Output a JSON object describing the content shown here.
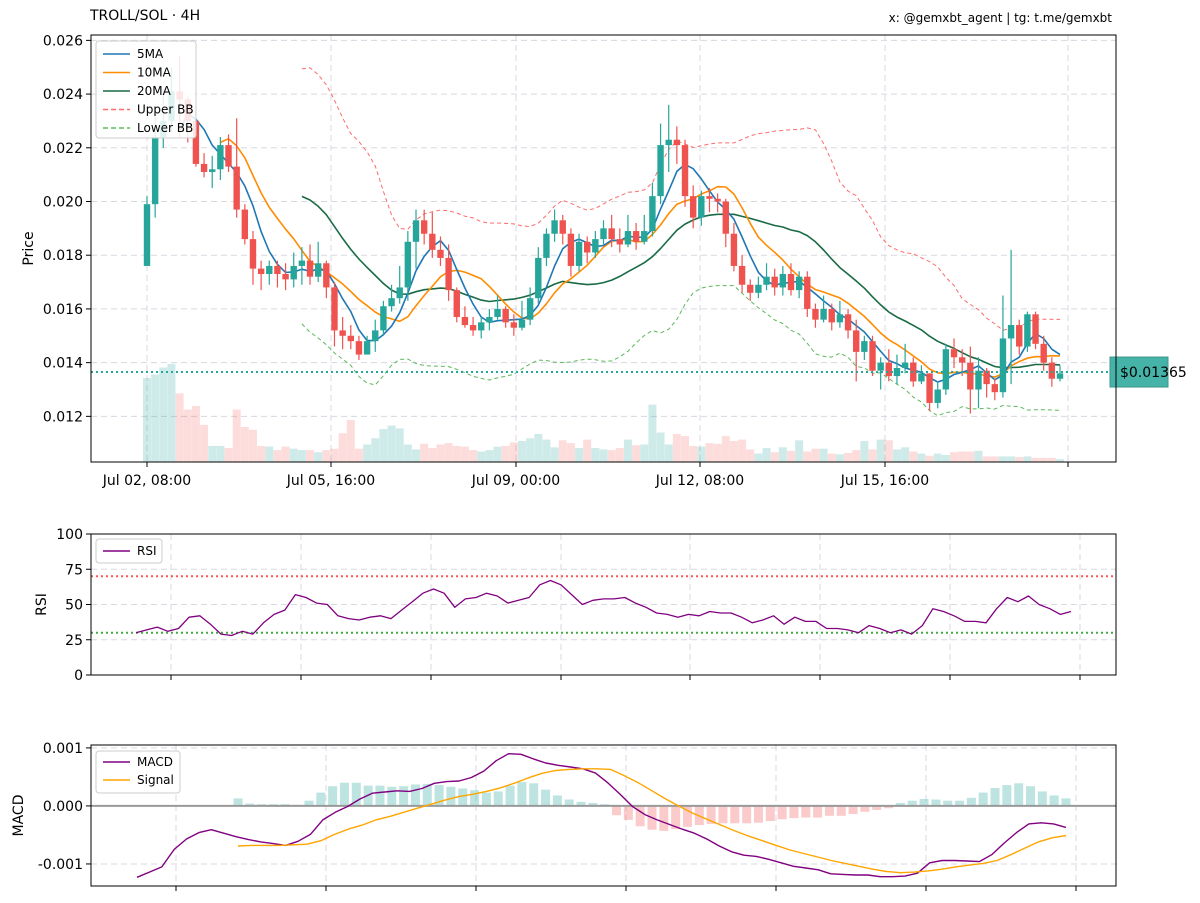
{
  "header": {
    "title": "TROLL/SOL · 4H",
    "credits": "x: @gemxbt_agent | tg: t.me/gemxbt"
  },
  "chart_data": [
    {
      "type": "candlestick",
      "ylabel": "Price",
      "ylim": [
        0.0103,
        0.0262
      ],
      "yticks": [
        "0.012",
        "0.014",
        "0.016",
        "0.018",
        "0.020",
        "0.022",
        "0.024",
        "0.026"
      ],
      "xticks": [
        "Jul 02, 08:00",
        "Jul 05, 16:00",
        "Jul 09, 00:00",
        "Jul 12, 08:00",
        "Jul 15, 16:00"
      ],
      "legend": {
        "position": "top-left",
        "entries": [
          "5MA",
          "10MA",
          "20MA",
          "Upper BB",
          "Lower BB"
        ]
      },
      "colors": {
        "up": "#26a69a",
        "down": "#ef5350",
        "ma5": "#1f77b4",
        "ma10": "#ff8c00",
        "ma20": "#1a6b45",
        "bb_upper": "#ff6b6b",
        "bb_lower": "#5cb85c"
      },
      "last_price": {
        "label": "$0.01365",
        "value": 0.01365,
        "color": "#26a69a"
      },
      "candles": [
        [
          0.0176,
          0.0199,
          0.0202,
          0.0176
        ],
        [
          0.0199,
          0.0224,
          0.0234,
          0.0194
        ],
        [
          0.0224,
          0.023,
          0.0242,
          0.022
        ],
        [
          0.023,
          0.0241,
          0.025,
          0.0226
        ],
        [
          0.0241,
          0.0238,
          0.0254,
          0.0224
        ],
        [
          0.0238,
          0.023,
          0.0239,
          0.0222
        ],
        [
          0.023,
          0.0214,
          0.0236,
          0.0213
        ],
        [
          0.0214,
          0.0211,
          0.0218,
          0.0209
        ],
        [
          0.0211,
          0.0212,
          0.0217,
          0.0205
        ],
        [
          0.0212,
          0.0221,
          0.0224,
          0.0208
        ],
        [
          0.0221,
          0.0213,
          0.0225,
          0.0211
        ],
        [
          0.0213,
          0.0197,
          0.0231,
          0.0194
        ],
        [
          0.0197,
          0.0186,
          0.0199,
          0.0184
        ],
        [
          0.0186,
          0.0175,
          0.0189,
          0.0169
        ],
        [
          0.0175,
          0.0173,
          0.0178,
          0.0167
        ],
        [
          0.0173,
          0.0176,
          0.0178,
          0.0169
        ],
        [
          0.0176,
          0.0173,
          0.0178,
          0.0168
        ],
        [
          0.0173,
          0.0171,
          0.0177,
          0.0167
        ],
        [
          0.0171,
          0.0176,
          0.0181,
          0.0168
        ],
        [
          0.0176,
          0.0178,
          0.0183,
          0.0169
        ],
        [
          0.0178,
          0.0172,
          0.0184,
          0.0169
        ],
        [
          0.0172,
          0.0177,
          0.0185,
          0.017
        ],
        [
          0.0177,
          0.0168,
          0.0178,
          0.0164
        ],
        [
          0.0168,
          0.0152,
          0.017,
          0.0146
        ],
        [
          0.0152,
          0.015,
          0.0157,
          0.0145
        ],
        [
          0.015,
          0.0148,
          0.0154,
          0.0145
        ],
        [
          0.0148,
          0.0143,
          0.015,
          0.0141
        ],
        [
          0.0143,
          0.0148,
          0.015,
          0.0145
        ],
        [
          0.0148,
          0.0152,
          0.0156,
          0.0144
        ],
        [
          0.0152,
          0.0161,
          0.0163,
          0.015
        ],
        [
          0.0161,
          0.0164,
          0.0169,
          0.0159
        ],
        [
          0.0164,
          0.0168,
          0.0176,
          0.0162
        ],
        [
          0.0168,
          0.0185,
          0.0189,
          0.0163
        ],
        [
          0.0185,
          0.0193,
          0.0197,
          0.0175
        ],
        [
          0.0193,
          0.0188,
          0.0197,
          0.0184
        ],
        [
          0.0188,
          0.0182,
          0.0196,
          0.0179
        ],
        [
          0.0182,
          0.0179,
          0.0187,
          0.0176
        ],
        [
          0.0179,
          0.0167,
          0.0184,
          0.0163
        ],
        [
          0.0167,
          0.0157,
          0.0168,
          0.0155
        ],
        [
          0.0157,
          0.0154,
          0.0161,
          0.0153
        ],
        [
          0.0154,
          0.0152,
          0.0157,
          0.015
        ],
        [
          0.0152,
          0.0155,
          0.0157,
          0.0149
        ],
        [
          0.0155,
          0.0157,
          0.016,
          0.0152
        ],
        [
          0.0157,
          0.016,
          0.0165,
          0.0156
        ],
        [
          0.016,
          0.0155,
          0.0161,
          0.0153
        ],
        [
          0.0155,
          0.0153,
          0.0158,
          0.015
        ],
        [
          0.0153,
          0.0156,
          0.0163,
          0.0152
        ],
        [
          0.0156,
          0.0164,
          0.0168,
          0.0154
        ],
        [
          0.0164,
          0.0179,
          0.0183,
          0.0162
        ],
        [
          0.0179,
          0.0188,
          0.019,
          0.0176
        ],
        [
          0.0188,
          0.0193,
          0.0197,
          0.0185
        ],
        [
          0.0193,
          0.0188,
          0.0195,
          0.0184
        ],
        [
          0.0188,
          0.0176,
          0.019,
          0.0172
        ],
        [
          0.0176,
          0.0185,
          0.0188,
          0.0174
        ],
        [
          0.0185,
          0.0181,
          0.0187,
          0.0177
        ],
        [
          0.0181,
          0.0186,
          0.0189,
          0.0179
        ],
        [
          0.0186,
          0.019,
          0.0193,
          0.0184
        ],
        [
          0.019,
          0.0186,
          0.0195,
          0.0183
        ],
        [
          0.0186,
          0.0184,
          0.019,
          0.0181
        ],
        [
          0.0184,
          0.0189,
          0.0195,
          0.0183
        ],
        [
          0.0189,
          0.0185,
          0.0192,
          0.0182
        ],
        [
          0.0185,
          0.0189,
          0.0195,
          0.0184
        ],
        [
          0.0189,
          0.0202,
          0.0207,
          0.0187
        ],
        [
          0.0202,
          0.0221,
          0.0229,
          0.0199
        ],
        [
          0.0221,
          0.0223,
          0.0236,
          0.0211
        ],
        [
          0.0223,
          0.0221,
          0.0228,
          0.0214
        ],
        [
          0.0221,
          0.0202,
          0.0223,
          0.0198
        ],
        [
          0.0202,
          0.0194,
          0.0206,
          0.019
        ],
        [
          0.0194,
          0.0202,
          0.0204,
          0.0191
        ],
        [
          0.0202,
          0.0201,
          0.0205,
          0.0196
        ],
        [
          0.0201,
          0.02,
          0.0203,
          0.0196
        ],
        [
          0.02,
          0.0188,
          0.0201,
          0.0183
        ],
        [
          0.0188,
          0.0176,
          0.0192,
          0.0174
        ],
        [
          0.0176,
          0.0169,
          0.018,
          0.0166
        ],
        [
          0.0169,
          0.0166,
          0.0171,
          0.0163
        ],
        [
          0.0166,
          0.0169,
          0.0172,
          0.0164
        ],
        [
          0.0169,
          0.0172,
          0.0177,
          0.0167
        ],
        [
          0.0172,
          0.0168,
          0.0175,
          0.0165
        ],
        [
          0.0168,
          0.0173,
          0.0176,
          0.0165
        ],
        [
          0.0173,
          0.0167,
          0.0177,
          0.0165
        ],
        [
          0.0167,
          0.0172,
          0.0174,
          0.0164
        ],
        [
          0.0172,
          0.016,
          0.0174,
          0.0157
        ],
        [
          0.016,
          0.0156,
          0.0162,
          0.0153
        ],
        [
          0.0156,
          0.016,
          0.0165,
          0.0155
        ],
        [
          0.016,
          0.0155,
          0.0162,
          0.0152
        ],
        [
          0.0155,
          0.0158,
          0.0163,
          0.0153
        ],
        [
          0.0158,
          0.0152,
          0.016,
          0.0149
        ],
        [
          0.0152,
          0.0144,
          0.0156,
          0.0133
        ],
        [
          0.0144,
          0.0148,
          0.015,
          0.0141
        ],
        [
          0.0148,
          0.0137,
          0.015,
          0.0135
        ],
        [
          0.0137,
          0.014,
          0.0142,
          0.013
        ],
        [
          0.014,
          0.0135,
          0.0145,
          0.0133
        ],
        [
          0.0135,
          0.0138,
          0.0143,
          0.0132
        ],
        [
          0.0138,
          0.014,
          0.0147,
          0.0136
        ],
        [
          0.014,
          0.0133,
          0.0142,
          0.0131
        ],
        [
          0.0133,
          0.0136,
          0.0139,
          0.0132
        ],
        [
          0.0136,
          0.0125,
          0.0136,
          0.0122
        ],
        [
          0.0125,
          0.013,
          0.0133,
          0.0123
        ],
        [
          0.013,
          0.0145,
          0.0147,
          0.0128
        ],
        [
          0.0145,
          0.0142,
          0.0149,
          0.0138
        ],
        [
          0.0142,
          0.014,
          0.0145,
          0.0135
        ],
        [
          0.014,
          0.013,
          0.0146,
          0.0121
        ],
        [
          0.013,
          0.0137,
          0.0142,
          0.0123
        ],
        [
          0.0137,
          0.0132,
          0.0138,
          0.0127
        ],
        [
          0.0132,
          0.0129,
          0.0134,
          0.0126
        ],
        [
          0.0129,
          0.0149,
          0.0165,
          0.0127
        ],
        [
          0.0149,
          0.0154,
          0.0182,
          0.0132
        ],
        [
          0.0154,
          0.0146,
          0.0156,
          0.0143
        ],
        [
          0.0146,
          0.0158,
          0.0159,
          0.0144
        ],
        [
          0.0158,
          0.0147,
          0.0159,
          0.0145
        ],
        [
          0.0147,
          0.014,
          0.015,
          0.0137
        ],
        [
          0.014,
          0.0134,
          0.0142,
          0.0131
        ],
        [
          0.0134,
          0.0136,
          0.0139,
          0.0133
        ]
      ],
      "volume": [
        1.2,
        1.25,
        1.35,
        1.4,
        0.98,
        0.75,
        0.8,
        0.53,
        0.23,
        0.23,
        0.2,
        0.75,
        0.5,
        0.46,
        0.23,
        0.22,
        0.17,
        0.22,
        0.19,
        0.17,
        0.17,
        0.14,
        0.17,
        0.19,
        0.41,
        0.6,
        0.19,
        0.25,
        0.34,
        0.47,
        0.52,
        0.48,
        0.25,
        0.18,
        0.26,
        0.2,
        0.25,
        0.27,
        0.23,
        0.22,
        0.17,
        0.15,
        0.17,
        0.22,
        0.23,
        0.28,
        0.3,
        0.34,
        0.4,
        0.32,
        0.21,
        0.31,
        0.27,
        0.2,
        0.32,
        0.2,
        0.18,
        0.17,
        0.2,
        0.32,
        0.24,
        0.25,
        0.82,
        0.42,
        0.25,
        0.4,
        0.37,
        0.23,
        0.22,
        0.27,
        0.26,
        0.37,
        0.3,
        0.32,
        0.18,
        0.12,
        0.2,
        0.14,
        0.21,
        0.16,
        0.31,
        0.15,
        0.19,
        0.19,
        0.12,
        0.11,
        0.13,
        0.17,
        0.3,
        0.18,
        0.32,
        0.31,
        0.18,
        0.21,
        0.15,
        0.12,
        0.09,
        0.12,
        0.1,
        0.14,
        0.15,
        0.15,
        0.16,
        0.08,
        0.08,
        0.08,
        0.08,
        0.07,
        0.08,
        0.06,
        0.06,
        0.06,
        0.04
      ]
    },
    {
      "type": "line",
      "ylabel": "RSI",
      "ylim": [
        0,
        100
      ],
      "yticks": [
        "0",
        "25",
        "50",
        "75",
        "100"
      ],
      "legend": {
        "position": "top-left",
        "entries": [
          "RSI"
        ]
      },
      "overbought": 70,
      "oversold": 30,
      "colors": {
        "rsi": "#800080",
        "overbought": "#ff5555",
        "oversold": "#44aa44"
      },
      "rsi": [
        30,
        32,
        34,
        31,
        33,
        41,
        42,
        36,
        29,
        28,
        31,
        29,
        37,
        43,
        46,
        57,
        55,
        51,
        50,
        42,
        40,
        39,
        41,
        42,
        40,
        46,
        52,
        58,
        61,
        58,
        48,
        54,
        55,
        58,
        56,
        51,
        53,
        55,
        64,
        67,
        64,
        57,
        50,
        53,
        54,
        54,
        55,
        51,
        48,
        44,
        43,
        41,
        43,
        42,
        45,
        44,
        44,
        41,
        37,
        39,
        42,
        36,
        41,
        38,
        38,
        33,
        33,
        32,
        30,
        35,
        33,
        30,
        32,
        29,
        35,
        47,
        45,
        42,
        38,
        38,
        37,
        47,
        55,
        52,
        56,
        50,
        47,
        43,
        45
      ]
    },
    {
      "type": "line",
      "ylabel": "MACD",
      "ylim": [
        -0.00138,
        0.00105
      ],
      "yticks": [
        "-0.001",
        "0.000",
        "0.001"
      ],
      "legend": {
        "position": "top-left",
        "entries": [
          "MACD",
          "Signal"
        ]
      },
      "colors": {
        "macd": "#800080",
        "signal": "#ffa500",
        "hist_pos": "#26a69a",
        "hist_neg": "#ef5350"
      },
      "macd": [
        -0.00123,
        -0.00114,
        -0.00105,
        -0.00075,
        -0.00057,
        -0.00046,
        -0.00041,
        -0.00047,
        -0.00053,
        -0.00058,
        -0.00062,
        -0.00065,
        -0.00068,
        -0.00061,
        -0.00049,
        -0.00024,
        -0.00011,
        -1e-05,
        0.00012,
        0.00022,
        0.00024,
        0.00026,
        0.00025,
        0.0003,
        0.00039,
        0.00042,
        0.00043,
        0.00049,
        0.0006,
        0.00078,
        0.0009,
        0.00089,
        0.00081,
        0.00074,
        0.0007,
        0.00067,
        0.00064,
        0.00057,
        0.0004,
        0.0002,
        -1e-05,
        -0.00015,
        -0.00024,
        -0.00032,
        -0.0004,
        -0.00047,
        -0.00057,
        -0.00069,
        -0.00079,
        -0.00085,
        -0.00087,
        -0.00092,
        -0.00098,
        -0.00104,
        -0.00107,
        -0.0011,
        -0.00117,
        -0.00118,
        -0.00119,
        -0.00119,
        -0.00122,
        -0.00122,
        -0.00121,
        -0.00116,
        -0.00098,
        -0.00094,
        -0.00094,
        -0.00095,
        -0.00096,
        -0.00084,
        -0.00064,
        -0.00046,
        -0.00031,
        -0.00029,
        -0.00031,
        -0.00037
      ],
      "signal": [
        -0.00069,
        -0.00068,
        -0.00068,
        -0.00068,
        -0.00067,
        -0.00066,
        -0.0006,
        -0.00049,
        -0.0004,
        -0.00033,
        -0.00024,
        -0.00018,
        -0.00011,
        -4e-05,
        3e-05,
        0.0001,
        0.00016,
        0.0002,
        0.00025,
        0.00031,
        0.00039,
        0.00048,
        0.00056,
        0.00061,
        0.00063,
        0.00064,
        0.00064,
        0.00063,
        0.00052,
        0.0004,
        0.00026,
        0.00012,
        -1e-05,
        -0.00013,
        -0.00023,
        -0.00033,
        -0.00043,
        -0.00052,
        -0.0006,
        -0.00068,
        -0.00076,
        -0.00082,
        -0.00088,
        -0.00094,
        -0.00099,
        -0.00104,
        -0.00109,
        -0.00113,
        -0.00115,
        -0.00114,
        -0.00112,
        -0.00109,
        -0.00105,
        -0.00102,
        -0.00099,
        -0.00094,
        -0.00084,
        -0.00073,
        -0.00062,
        -0.00055,
        -0.00051
      ],
      "histogram": [
        0.00013,
        4e-05,
        3e-05,
        3e-05,
        3e-05,
        2e-05,
        9e-05,
        0.00023,
        0.00034,
        0.0004,
        0.0004,
        0.00035,
        0.00035,
        0.00033,
        0.00034,
        0.00037,
        0.00038,
        0.00036,
        0.00033,
        0.0003,
        0.00027,
        0.00023,
        0.00025,
        0.00035,
        0.00041,
        0.00039,
        0.00028,
        0.00018,
        0.00011,
        7e-05,
        5e-05,
        3e-05,
        -0.00016,
        -0.00024,
        -0.00035,
        -0.00041,
        -0.00043,
        -0.0004,
        -0.00036,
        -0.00033,
        -0.00031,
        -0.0003,
        -0.0003,
        -0.0003,
        -0.00029,
        -0.00026,
        -0.00023,
        -0.00021,
        -0.0002,
        -0.0002,
        -0.00017,
        -0.00017,
        -0.00014,
        -0.0001,
        -7e-05,
        -4e-05,
        5e-05,
        9e-05,
        0.00012,
        0.00011,
        9e-05,
        9e-05,
        0.00014,
        0.00023,
        0.00031,
        0.00036,
        0.00039,
        0.00034,
        0.00025,
        0.00018,
        0.00013
      ]
    }
  ]
}
